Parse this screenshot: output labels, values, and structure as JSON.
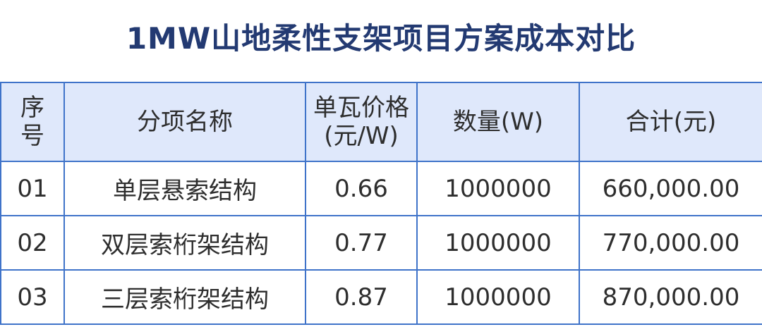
{
  "title": "1MW山地柔性支架项目方案成本对比",
  "table": {
    "headers": {
      "seq_line1": "序",
      "seq_line2": "号",
      "name": "分项名称",
      "price_line1": "单瓦价格",
      "price_line2": "(元/W)",
      "quantity": "数量(W)",
      "total": "合计(元)"
    },
    "rows": [
      {
        "seq": "01",
        "name": "单层悬索结构",
        "price": "0.66",
        "quantity": "1000000",
        "total": "660,000.00"
      },
      {
        "seq": "02",
        "name": "双层索桁架结构",
        "price": "0.77",
        "quantity": "1000000",
        "total": "770,000.00"
      },
      {
        "seq": "03",
        "name": "三层索桁架结构",
        "price": "0.87",
        "quantity": "1000000",
        "total": "870,000.00"
      }
    ]
  },
  "colors": {
    "title": "#233a72",
    "border": "#3f73c9",
    "header_bg": "#dfe8fb",
    "text": "#2e2e2e"
  }
}
